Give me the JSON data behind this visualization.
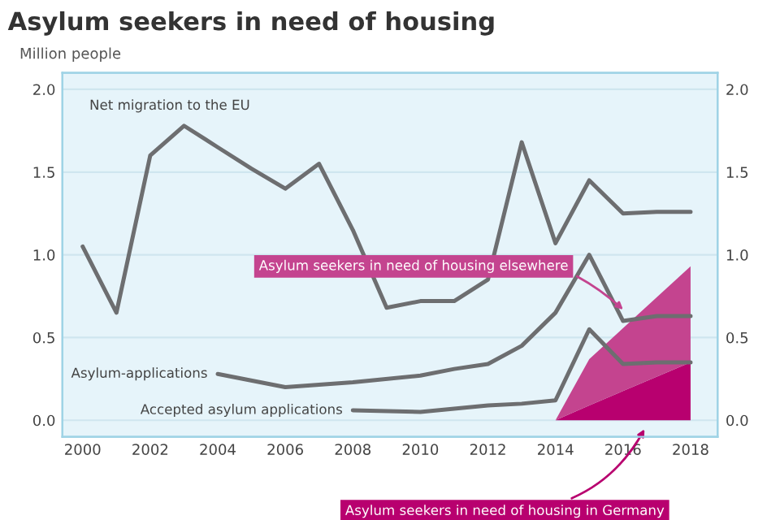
{
  "chart_data": {
    "type": "line",
    "title": "Asylum seekers in need of housing",
    "ylabel": "Million people",
    "xlim": [
      1999.4,
      2018.8
    ],
    "xticks": [
      2000,
      2002,
      2004,
      2006,
      2008,
      2010,
      2012,
      2014,
      2016,
      2018
    ],
    "ylim": [
      -0.1,
      2.1
    ],
    "yticks": [
      {
        "value": 0,
        "label": "0.0"
      },
      0.5,
      {
        "value": 1,
        "label": "1.0"
      },
      1.5,
      {
        "value": 2,
        "label": "2.0"
      }
    ],
    "y2lim": [
      -0.1,
      2.1
    ],
    "y2ticks": [
      {
        "value": 0,
        "label": "0.0"
      },
      0.5,
      {
        "value": 1,
        "label": "1.0"
      },
      1.5,
      {
        "value": 2,
        "label": "2.0"
      }
    ],
    "grid": "y",
    "legend": false,
    "stacked": true,
    "marker": "none",
    "line_style": "solid",
    "series": [
      {
        "name": "Asylum seekers in need of housing in Germany",
        "type": "area",
        "color": "#b8006f",
        "x": [
          2014,
          2015,
          2018
        ],
        "values": [
          0,
          0.09,
          0.35
        ]
      },
      {
        "name": "Asylum seekers in need of housing elsewhere",
        "type": "area",
        "color": "#c4448f",
        "x": [
          2014,
          2015,
          2018
        ],
        "values": [
          0,
          0.28,
          0.58
        ]
      },
      {
        "name": "Net migration to the EU",
        "color": "#6d6e70",
        "x": [
          2000,
          2001,
          2002,
          2003,
          2004,
          2005,
          2006,
          2007,
          2008,
          2009,
          2010,
          2011,
          2012,
          2013,
          2014,
          2015,
          2016,
          2017,
          2018
        ],
        "values": [
          1.05,
          0.65,
          1.6,
          1.78,
          1.65,
          1.52,
          1.4,
          1.55,
          1.15,
          0.68,
          0.72,
          0.72,
          0.85,
          1.68,
          1.07,
          1.45,
          1.25,
          1.26,
          1.26
        ]
      },
      {
        "name": "Asylum-applications",
        "color": "#6d6e70",
        "x": [
          2004,
          2006,
          2008,
          2010,
          2011,
          2012,
          2013,
          2014,
          2015,
          2016,
          2017,
          2018
        ],
        "values": [
          0.28,
          0.2,
          0.23,
          0.27,
          0.31,
          0.34,
          0.45,
          0.65,
          1.0,
          0.6,
          0.63,
          0.63
        ]
      },
      {
        "name": "Accepted asylum applications",
        "color": "#6d6e70",
        "x": [
          2008,
          2010,
          2012,
          2013,
          2014,
          2015,
          2016,
          2017,
          2018
        ],
        "values": [
          0.06,
          0.05,
          0.09,
          0.1,
          0.12,
          0.55,
          0.34,
          0.35,
          0.35
        ]
      }
    ]
  }
}
